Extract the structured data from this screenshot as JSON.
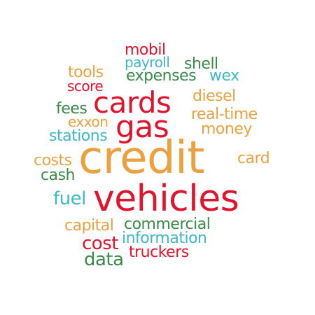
{
  "palette": {
    "red": "#e0142c",
    "orange": "#eba13f",
    "green": "#3a8a48",
    "teal": "#40b8c4"
  },
  "words": [
    {
      "text": "credit",
      "color": "orange",
      "size": "xxl"
    },
    {
      "text": "vehicles",
      "color": "red",
      "size": "xl"
    },
    {
      "text": "gas",
      "color": "red",
      "size": "xl"
    },
    {
      "text": "cards",
      "color": "red",
      "size": "l"
    },
    {
      "text": "mobil",
      "color": "red",
      "size": "s"
    },
    {
      "text": "payroll",
      "color": "teal",
      "size": "s"
    },
    {
      "text": "shell",
      "color": "green",
      "size": "s"
    },
    {
      "text": "tools",
      "color": "orange",
      "size": "s"
    },
    {
      "text": "expenses",
      "color": "green",
      "size": "s"
    },
    {
      "text": "wex",
      "color": "teal",
      "size": "s"
    },
    {
      "text": "score",
      "color": "red",
      "size": "s"
    },
    {
      "text": "diesel",
      "color": "orange",
      "size": "s"
    },
    {
      "text": "fees",
      "color": "green",
      "size": "s"
    },
    {
      "text": "real-time",
      "color": "orange",
      "size": "s"
    },
    {
      "text": "exxon",
      "color": "orange",
      "size": "s"
    },
    {
      "text": "money",
      "color": "orange",
      "size": "s"
    },
    {
      "text": "stations",
      "color": "teal",
      "size": "s"
    },
    {
      "text": "costs",
      "color": "orange",
      "size": "s"
    },
    {
      "text": "card",
      "color": "orange",
      "size": "s"
    },
    {
      "text": "cash",
      "color": "green",
      "size": "s"
    },
    {
      "text": "fuel",
      "color": "teal",
      "size": "m"
    },
    {
      "text": "capital",
      "color": "orange",
      "size": "s"
    },
    {
      "text": "commercial",
      "color": "green",
      "size": "s"
    },
    {
      "text": "cost",
      "color": "red",
      "size": "m"
    },
    {
      "text": "information",
      "color": "teal",
      "size": "s"
    },
    {
      "text": "data",
      "color": "green",
      "size": "m"
    },
    {
      "text": "truckers",
      "color": "red",
      "size": "s"
    }
  ]
}
